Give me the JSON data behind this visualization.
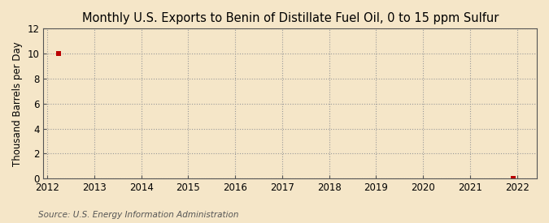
{
  "title": "Monthly U.S. Exports to Benin of Distillate Fuel Oil, 0 to 15 ppm Sulfur",
  "ylabel": "Thousand Barrels per Day",
  "source_text": "Source: U.S. Energy Information Administration",
  "background_color": "#f5e6c8",
  "plot_background_color": "#f5e6c8",
  "data_points_x": [
    2012.25,
    2021.92
  ],
  "data_points_y": [
    10.0,
    0.03
  ],
  "marker_color": "#bb0000",
  "marker_size": 4,
  "xlim": [
    2011.92,
    2022.42
  ],
  "ylim": [
    0,
    12
  ],
  "xticks": [
    2012,
    2013,
    2014,
    2015,
    2016,
    2017,
    2018,
    2019,
    2020,
    2021,
    2022
  ],
  "yticks": [
    0,
    2,
    4,
    6,
    8,
    10,
    12
  ],
  "grid_color": "#999999",
  "grid_linestyle": ":",
  "grid_linewidth": 0.8,
  "title_fontsize": 10.5,
  "label_fontsize": 8.5,
  "tick_fontsize": 8.5,
  "source_fontsize": 7.5,
  "spine_color": "#555555"
}
